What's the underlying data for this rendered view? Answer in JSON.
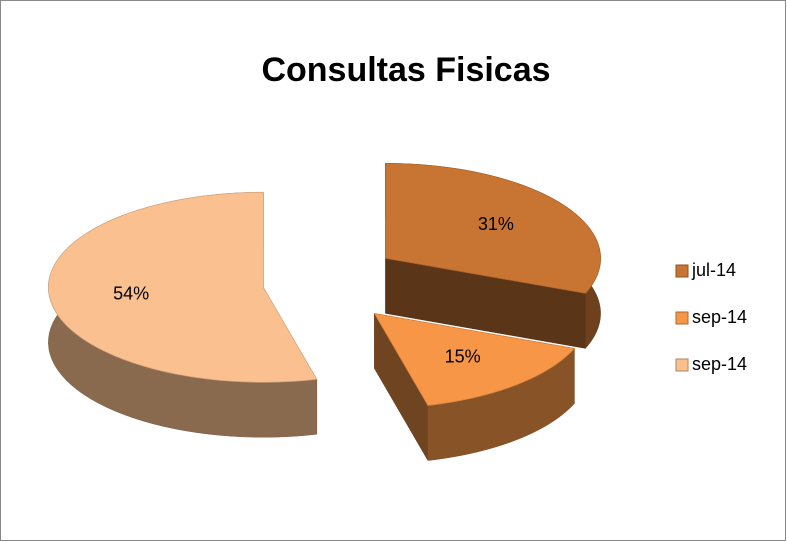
{
  "chart_data": {
    "type": "pie",
    "title": "Consultas  Fisicas",
    "categories": [
      "jul-14",
      "sep-14",
      "sep-14"
    ],
    "values": [
      31,
      15,
      54
    ],
    "value_labels": [
      "31%",
      "15%",
      "54%"
    ],
    "colors": [
      "#c87533",
      "#f79646",
      "#fac090"
    ],
    "legend": "right"
  }
}
